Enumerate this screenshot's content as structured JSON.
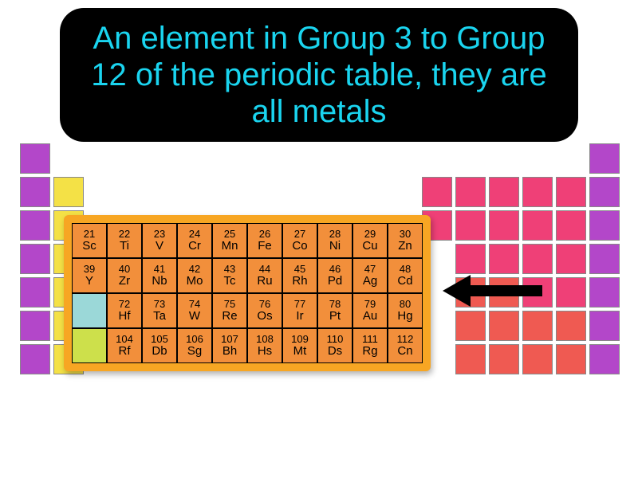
{
  "definition": {
    "text": "An element in Group 3 to Group 12 of the periodic table, they are all metals",
    "text_color": "#1ad4ef",
    "background": "#000000"
  },
  "background_table": {
    "cell_size": 38,
    "gap": 4,
    "cells": [
      {
        "r": 0,
        "c": 0,
        "color": "#b347c9"
      },
      {
        "r": 0,
        "c": 17,
        "color": "#b347c9"
      },
      {
        "r": 1,
        "c": 0,
        "color": "#b347c9"
      },
      {
        "r": 1,
        "c": 1,
        "color": "#f4e146"
      },
      {
        "r": 1,
        "c": 12,
        "color": "#ef4077"
      },
      {
        "r": 1,
        "c": 13,
        "color": "#ef4077"
      },
      {
        "r": 1,
        "c": 14,
        "color": "#ef4077"
      },
      {
        "r": 1,
        "c": 15,
        "color": "#ef4077"
      },
      {
        "r": 1,
        "c": 16,
        "color": "#ef4077"
      },
      {
        "r": 1,
        "c": 17,
        "color": "#b347c9"
      },
      {
        "r": 2,
        "c": 0,
        "color": "#b347c9"
      },
      {
        "r": 2,
        "c": 1,
        "color": "#f4e146"
      },
      {
        "r": 2,
        "c": 12,
        "color": "#ef4077"
      },
      {
        "r": 2,
        "c": 13,
        "color": "#ef4077"
      },
      {
        "r": 2,
        "c": 14,
        "color": "#ef4077"
      },
      {
        "r": 2,
        "c": 15,
        "color": "#ef4077"
      },
      {
        "r": 2,
        "c": 16,
        "color": "#ef4077"
      },
      {
        "r": 2,
        "c": 17,
        "color": "#b347c9"
      },
      {
        "r": 3,
        "c": 0,
        "color": "#b347c9"
      },
      {
        "r": 3,
        "c": 1,
        "color": "#f4e146"
      },
      {
        "r": 3,
        "c": 13,
        "color": "#ef4077"
      },
      {
        "r": 3,
        "c": 14,
        "color": "#ef4077"
      },
      {
        "r": 3,
        "c": 15,
        "color": "#ef4077"
      },
      {
        "r": 3,
        "c": 16,
        "color": "#ef4077"
      },
      {
        "r": 3,
        "c": 17,
        "color": "#b347c9"
      },
      {
        "r": 4,
        "c": 0,
        "color": "#b347c9"
      },
      {
        "r": 4,
        "c": 1,
        "color": "#f4e146"
      },
      {
        "r": 4,
        "c": 13,
        "color": "#ef5a52"
      },
      {
        "r": 4,
        "c": 14,
        "color": "#ef5a52"
      },
      {
        "r": 4,
        "c": 15,
        "color": "#ef4077"
      },
      {
        "r": 4,
        "c": 16,
        "color": "#ef4077"
      },
      {
        "r": 4,
        "c": 17,
        "color": "#b347c9"
      },
      {
        "r": 5,
        "c": 0,
        "color": "#b347c9"
      },
      {
        "r": 5,
        "c": 1,
        "color": "#f4e146"
      },
      {
        "r": 5,
        "c": 13,
        "color": "#ef5a52"
      },
      {
        "r": 5,
        "c": 14,
        "color": "#ef5a52"
      },
      {
        "r": 5,
        "c": 15,
        "color": "#ef5a52"
      },
      {
        "r": 5,
        "c": 16,
        "color": "#ef5a52"
      },
      {
        "r": 5,
        "c": 17,
        "color": "#b347c9"
      },
      {
        "r": 6,
        "c": 0,
        "color": "#b347c9"
      },
      {
        "r": 6,
        "c": 1,
        "color": "#f4e146"
      },
      {
        "r": 6,
        "c": 13,
        "color": "#ef5a52"
      },
      {
        "r": 6,
        "c": 14,
        "color": "#ef5a52"
      },
      {
        "r": 6,
        "c": 15,
        "color": "#ef5a52"
      },
      {
        "r": 6,
        "c": 16,
        "color": "#ef5a52"
      },
      {
        "r": 6,
        "c": 17,
        "color": "#b347c9"
      }
    ]
  },
  "highlight": {
    "frame_color": "#f7a623",
    "cell_color": "#f28f3b",
    "placeholder_colors": [
      "#9bd8d8",
      "#cde04b"
    ],
    "text_color": "#000000",
    "rows": [
      [
        {
          "num": "21",
          "sym": "Sc"
        },
        {
          "num": "22",
          "sym": "Ti"
        },
        {
          "num": "23",
          "sym": "V"
        },
        {
          "num": "24",
          "sym": "Cr"
        },
        {
          "num": "25",
          "sym": "Mn"
        },
        {
          "num": "26",
          "sym": "Fe"
        },
        {
          "num": "27",
          "sym": "Co"
        },
        {
          "num": "28",
          "sym": "Ni"
        },
        {
          "num": "29",
          "sym": "Cu"
        },
        {
          "num": "30",
          "sym": "Zn"
        }
      ],
      [
        {
          "num": "39",
          "sym": "Y"
        },
        {
          "num": "40",
          "sym": "Zr"
        },
        {
          "num": "41",
          "sym": "Nb"
        },
        {
          "num": "42",
          "sym": "Mo"
        },
        {
          "num": "43",
          "sym": "Tc"
        },
        {
          "num": "44",
          "sym": "Ru"
        },
        {
          "num": "45",
          "sym": "Rh"
        },
        {
          "num": "46",
          "sym": "Pd"
        },
        {
          "num": "47",
          "sym": "Ag"
        },
        {
          "num": "48",
          "sym": "Cd"
        }
      ],
      [
        {
          "placeholder": 0
        },
        {
          "num": "72",
          "sym": "Hf"
        },
        {
          "num": "73",
          "sym": "Ta"
        },
        {
          "num": "74",
          "sym": "W"
        },
        {
          "num": "75",
          "sym": "Re"
        },
        {
          "num": "76",
          "sym": "Os"
        },
        {
          "num": "77",
          "sym": "Ir"
        },
        {
          "num": "78",
          "sym": "Pt"
        },
        {
          "num": "79",
          "sym": "Au"
        },
        {
          "num": "80",
          "sym": "Hg"
        }
      ],
      [
        {
          "placeholder": 1
        },
        {
          "num": "104",
          "sym": "Rf"
        },
        {
          "num": "105",
          "sym": "Db"
        },
        {
          "num": "106",
          "sym": "Sg"
        },
        {
          "num": "107",
          "sym": "Bh"
        },
        {
          "num": "108",
          "sym": "Hs"
        },
        {
          "num": "109",
          "sym": "Mt"
        },
        {
          "num": "110",
          "sym": "Ds"
        },
        {
          "num": "111",
          "sym": "Rg"
        },
        {
          "num": "112",
          "sym": "Cn"
        }
      ]
    ]
  },
  "arrow": {
    "color": "#000000"
  }
}
